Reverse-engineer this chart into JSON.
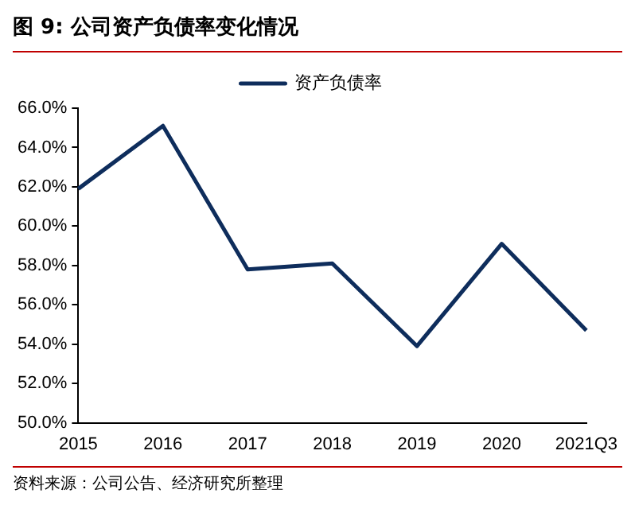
{
  "chart_data": {
    "type": "line",
    "title": "图 9: 公司资产负债率变化情况",
    "categories": [
      "2015",
      "2016",
      "2017",
      "2018",
      "2019",
      "2020",
      "2021Q3"
    ],
    "series": [
      {
        "name": "资产负债率",
        "color": "#0e2d5c",
        "values": [
          61.9,
          65.1,
          57.8,
          58.1,
          53.9,
          59.1,
          54.7
        ]
      }
    ],
    "ylim": [
      50,
      66
    ],
    "yticks": [
      {
        "value": 50,
        "label": "50.0%"
      },
      {
        "value": 52,
        "label": "52.0%"
      },
      {
        "value": 54,
        "label": "54.0%"
      },
      {
        "value": 56,
        "label": "56.0%"
      },
      {
        "value": 58,
        "label": "58.0%"
      },
      {
        "value": 60,
        "label": "60.0%"
      },
      {
        "value": 62,
        "label": "62.0%"
      },
      {
        "value": 64,
        "label": "64.0%"
      },
      {
        "value": 66,
        "label": "66.0%"
      }
    ],
    "grid": false,
    "legend": "top",
    "marker": "none",
    "line_style": "solid",
    "annotations": [
      "资料来源：公司公告、经济研究所整理"
    ]
  }
}
